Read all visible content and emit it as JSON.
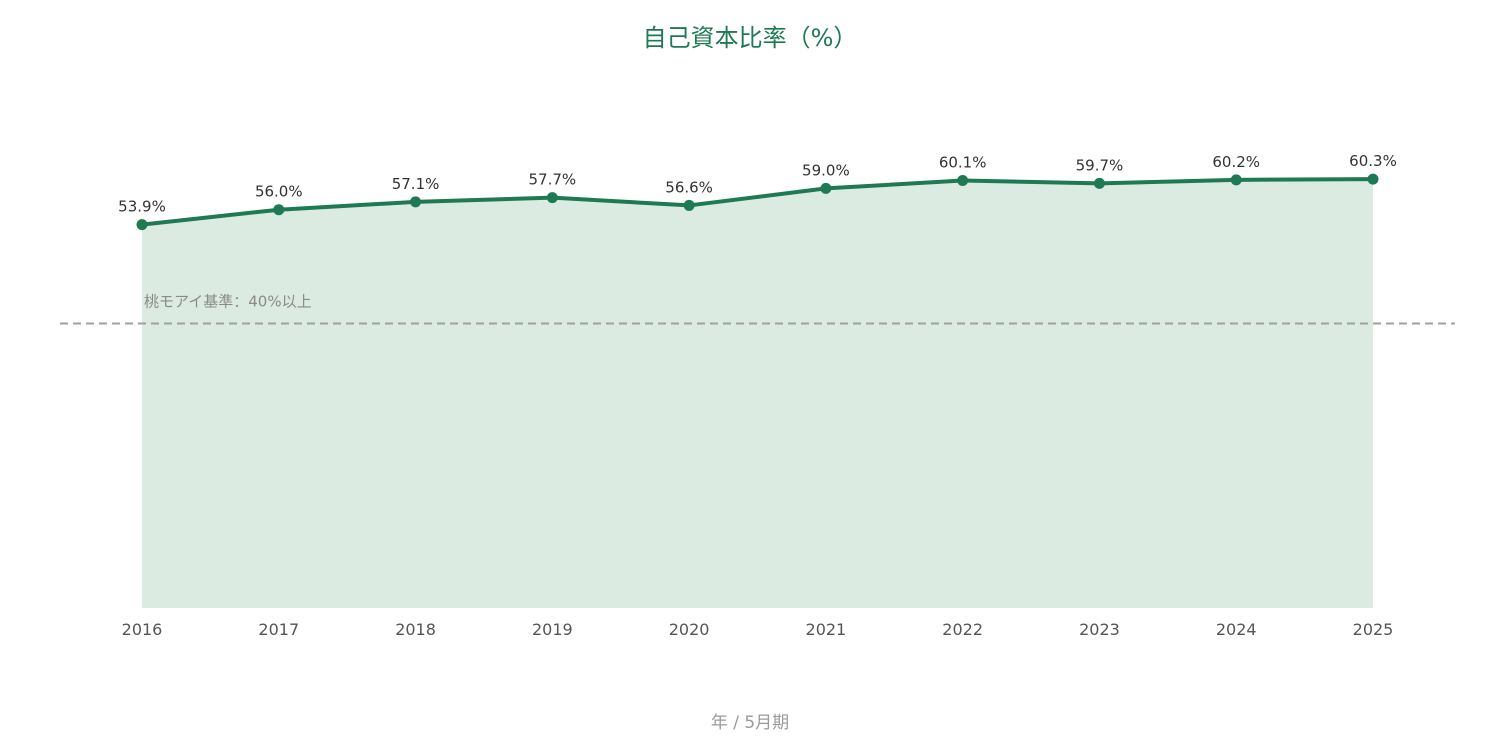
{
  "chart_data": {
    "type": "area",
    "title": "自己資本比率（%）",
    "xlabel": "年 / 5月期",
    "ylabel": "",
    "x": [
      "2016",
      "2017",
      "2018",
      "2019",
      "2020",
      "2021",
      "2022",
      "2023",
      "2024",
      "2025"
    ],
    "series": [
      {
        "values": [
          53.9,
          56.0,
          57.1,
          57.7,
          56.6,
          59.0,
          60.1,
          59.7,
          60.2,
          60.3
        ],
        "labels": [
          "53.9%",
          "56.0%",
          "57.1%",
          "57.7%",
          "56.6%",
          "59.0%",
          "60.1%",
          "59.7%",
          "60.2%",
          "60.3%"
        ]
      }
    ],
    "ylim": [
      0,
      80
    ],
    "reference_line": {
      "value": 40,
      "label": "桃モアイ基準：40%以上",
      "style": "dashed"
    },
    "grid": false,
    "legend": "none"
  },
  "colors": {
    "line": "#1e7a52",
    "fill": "#dcebe2",
    "reference": "#a0a0a0",
    "title": "#1e7a52"
  }
}
